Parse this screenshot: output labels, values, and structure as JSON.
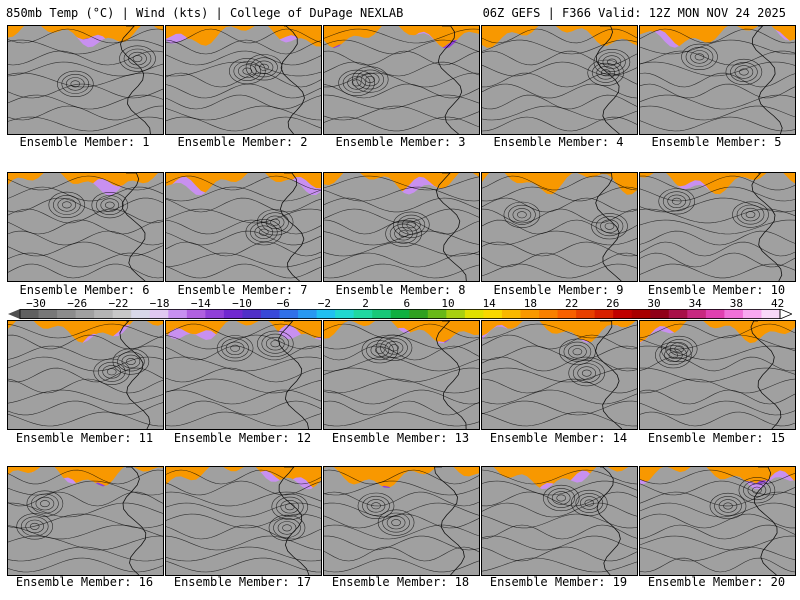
{
  "header": {
    "left": "850mb Temp (°C) | Wind (kts) | College of DuPage NEXLAB",
    "right": "06Z GEFS | F366 Valid: 12Z MON NOV 24 2025"
  },
  "member_label_prefix": "Ensemble Member: ",
  "members": [
    1,
    2,
    3,
    4,
    5,
    6,
    7,
    8,
    9,
    10,
    11,
    12,
    13,
    14,
    15,
    16,
    17,
    18,
    19,
    20
  ],
  "colorbar": {
    "ticks": [
      "−30",
      "−26",
      "−22",
      "−18",
      "−14",
      "−10",
      "−6",
      "−2",
      "2",
      "6",
      "10",
      "14",
      "18",
      "22",
      "26",
      "30",
      "34",
      "38",
      "42"
    ],
    "colors": [
      "#606060",
      "#787878",
      "#8c8c8c",
      "#a0a0a0",
      "#b4b4b4",
      "#c8c8c8",
      "#d8d8e8",
      "#e0c8f0",
      "#c890f0",
      "#b060e0",
      "#9040d8",
      "#7028d0",
      "#5030c8",
      "#3848d8",
      "#3070e8",
      "#2898f0",
      "#20c0f0",
      "#20d8d0",
      "#20d8a0",
      "#18c878",
      "#10b040",
      "#30a020",
      "#68b818",
      "#a8d010",
      "#e0e000",
      "#f8d800",
      "#f8b800",
      "#f89800",
      "#f88000",
      "#f86000",
      "#e84000",
      "#d82000",
      "#c00000",
      "#a80000",
      "#900018",
      "#a81048",
      "#c82880",
      "#e040b0",
      "#f070d8",
      "#f8a8f0",
      "#f8d8f8"
    ]
  }
}
